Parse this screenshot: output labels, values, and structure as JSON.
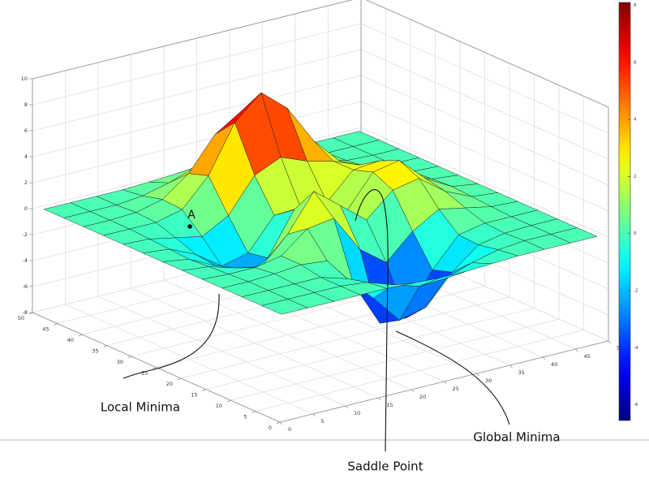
{
  "chart_data": {
    "type": "surface",
    "colormap": "jet",
    "grid": true,
    "edge_color": "#1a1a1a",
    "x": [
      1,
      5,
      9,
      13,
      17,
      21,
      25,
      29,
      33,
      37,
      41,
      45,
      49
    ],
    "y": [
      1,
      5,
      9,
      13,
      17,
      21,
      25,
      29,
      33,
      37,
      41,
      45,
      49
    ],
    "z": [
      [
        0,
        0,
        0,
        0,
        0,
        -0.1,
        -0.2,
        -0.2,
        -0.1,
        0,
        0,
        0,
        0
      ],
      [
        0,
        0,
        0,
        0,
        -0.2,
        -0.9,
        -1.5,
        -1.4,
        -0.7,
        -0.2,
        0,
        0,
        0
      ],
      [
        0,
        0,
        0,
        0,
        -0.6,
        -2.6,
        -4.8,
        -4.3,
        -2.1,
        -0.5,
        -0.1,
        0,
        0
      ],
      [
        0,
        0,
        0.1,
        0.3,
        0.1,
        -2.2,
        -5.7,
        -5.8,
        -2.6,
        -0.4,
        0,
        0,
        0
      ],
      [
        0,
        -0.1,
        -0.1,
        0.3,
        1.9,
        2.2,
        -0.7,
        -2.2,
        -0.3,
        0.9,
        0.5,
        0.1,
        0
      ],
      [
        0,
        -0.2,
        -0.8,
        -1.2,
        0.8,
        3.6,
        2.0,
        0.4,
        2.2,
        2.6,
        1.1,
        0.2,
        0
      ],
      [
        0,
        -0.3,
        -1.3,
        -2.8,
        -1.7,
        1.5,
        1.0,
        0.4,
        2.9,
        3.3,
        1.4,
        0.3,
        0
      ],
      [
        0,
        -0.2,
        -1.1,
        -2.5,
        -2.0,
        0.4,
        0.5,
        0.4,
        2.4,
        2.6,
        1.1,
        0.2,
        0
      ],
      [
        0,
        -0.1,
        -0.5,
        -0.9,
        0.2,
        2.8,
        3.7,
        2.9,
        2.4,
        1.6,
        0.6,
        0.1,
        0
      ],
      [
        0,
        0,
        0,
        0.5,
        2.6,
        6.2,
        8.0,
        6.3,
        3.3,
        1.2,
        0.3,
        0,
        0
      ],
      [
        0,
        0,
        0.1,
        0.6,
        2.1,
        4.6,
        5.9,
        4.6,
        2.2,
        0.7,
        0.1,
        0,
        0
      ],
      [
        0,
        0,
        0,
        0.2,
        0.7,
        1.4,
        1.9,
        1.4,
        0.7,
        0.2,
        0,
        0,
        0
      ],
      [
        0,
        0,
        0,
        0,
        0.1,
        0.2,
        0.2,
        0.2,
        0.1,
        0,
        0,
        0,
        0
      ]
    ],
    "xlim": [
      0,
      50
    ],
    "xticks": [
      0,
      5,
      10,
      15,
      20,
      25,
      30,
      35,
      40,
      45,
      50
    ],
    "ylim": [
      0,
      50
    ],
    "yticks": [
      0,
      5,
      10,
      15,
      20,
      25,
      30,
      35,
      40,
      45,
      50
    ],
    "zlim": [
      -8,
      10
    ],
    "zticks": [
      -8,
      -6,
      -4,
      -2,
      0,
      2,
      4,
      6,
      8,
      10
    ],
    "clim": [
      -6.55,
      8.1
    ],
    "cticks": [
      -6,
      -4,
      -2,
      0,
      2,
      4,
      6,
      8
    ],
    "annotations": [
      "A",
      "Local Minima",
      "Saddle Point",
      "Global Minima"
    ]
  }
}
